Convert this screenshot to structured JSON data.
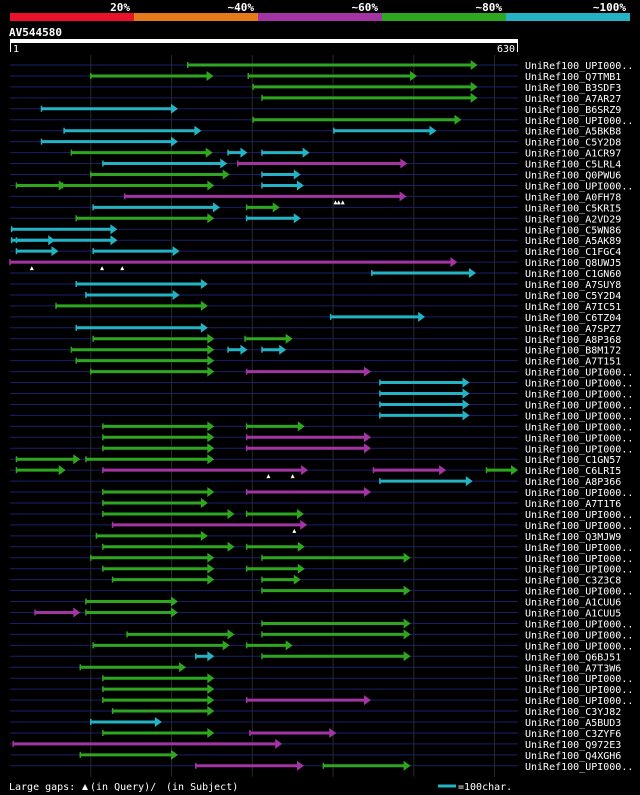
{
  "query_id": "AV544580",
  "query_length": 630,
  "axis": {
    "start_label": "1",
    "end_label": "630"
  },
  "identity_scale": {
    "labels": [
      "20%",
      "~40%",
      "~60%",
      "~80%",
      "~100%"
    ],
    "colors": [
      "#e8132a",
      "#e67a1a",
      "#a334a3",
      "#2ea61f",
      "#24b3c5"
    ]
  },
  "footer": {
    "gaps_label": "Large gaps:",
    "gaps_query": "(in Query)/",
    "gaps_subject": "(in Subject)",
    "scale_label": "=100char."
  },
  "chart_data": {
    "type": "alignment-map",
    "xlim": [
      1,
      630
    ],
    "color_key": {
      "R": "#e8132a",
      "O": "#e67a1a",
      "M": "#a334a3",
      "G": "#2ea61f",
      "C": "#24b3c5"
    },
    "rows": [
      {
        "name": "UniRef100_UPI000..",
        "segs": [
          [
            221,
            580,
            "G"
          ]
        ],
        "gaps": []
      },
      {
        "name": "UniRef100_Q7TMB1",
        "segs": [
          [
            101,
            253,
            "G"
          ],
          [
            296,
            505,
            "G"
          ]
        ],
        "gaps": []
      },
      {
        "name": "UniRef100_B3SDF3",
        "segs": [
          [
            302,
            580,
            "G"
          ]
        ],
        "gaps": []
      },
      {
        "name": "UniRef100_A7AR27",
        "segs": [
          [
            313,
            580,
            "G"
          ]
        ],
        "gaps": []
      },
      {
        "name": "UniRef100_B6SRZ9",
        "segs": [
          [
            40,
            209,
            "C"
          ]
        ],
        "gaps": []
      },
      {
        "name": "UniRef100_UPI000..",
        "segs": [
          [
            302,
            560,
            "G"
          ]
        ],
        "gaps": []
      },
      {
        "name": "UniRef100_A5BKB8",
        "segs": [
          [
            68,
            238,
            "C"
          ],
          [
            402,
            529,
            "C"
          ]
        ],
        "gaps": []
      },
      {
        "name": "UniRef100_C5Y2D8",
        "segs": [
          [
            40,
            209,
            "C"
          ]
        ],
        "gaps": []
      },
      {
        "name": "UniRef100_A1CR97",
        "segs": [
          [
            77,
            252,
            "G"
          ],
          [
            271,
            295,
            "C"
          ],
          [
            313,
            372,
            "C"
          ]
        ],
        "gaps": []
      },
      {
        "name": "UniRef100_C5LRL4",
        "segs": [
          [
            116,
            270,
            "C"
          ],
          [
            283,
            493,
            "M"
          ]
        ],
        "gaps": []
      },
      {
        "name": "UniRef100_Q0PWU6",
        "segs": [
          [
            101,
            273,
            "G"
          ],
          [
            313,
            361,
            "C"
          ]
        ],
        "gaps": []
      },
      {
        "name": "UniRef100_UPI000..",
        "segs": [
          [
            9,
            70,
            "G"
          ],
          [
            66,
            254,
            "G"
          ],
          [
            313,
            365,
            "C"
          ]
        ],
        "gaps": []
      },
      {
        "name": "UniRef100_A0FH78",
        "segs": [
          [
            143,
            492,
            "M"
          ]
        ],
        "gaps": [
          [
            404,
            "Q"
          ],
          [
            408,
            "Q"
          ],
          [
            413,
            "Q"
          ]
        ]
      },
      {
        "name": "UniRef100_C5KRI5",
        "segs": [
          [
            104,
            261,
            "C"
          ],
          [
            294,
            335,
            "G"
          ]
        ],
        "gaps": []
      },
      {
        "name": "UniRef100_A2VD29",
        "segs": [
          [
            83,
            254,
            "G"
          ],
          [
            294,
            361,
            "C"
          ]
        ],
        "gaps": []
      },
      {
        "name": "UniRef100_C5WN86",
        "segs": [
          [
            3,
            134,
            "C"
          ]
        ],
        "gaps": []
      },
      {
        "name": "UniRef100_A5AK89",
        "segs": [
          [
            3,
            134,
            "C"
          ],
          [
            9,
            57,
            "C"
          ]
        ],
        "gaps": []
      },
      {
        "name": "UniRef100_C1FGC4",
        "segs": [
          [
            9,
            61,
            "C"
          ],
          [
            104,
            211,
            "C"
          ]
        ],
        "gaps": []
      },
      {
        "name": "UniRef100_Q8UWJ5",
        "segs": [
          [
            1,
            555,
            "M"
          ]
        ],
        "gaps": [
          [
            28,
            "Q"
          ],
          [
            115,
            "Q"
          ],
          [
            140,
            "Q"
          ]
        ]
      },
      {
        "name": "UniRef100_C1GN60",
        "segs": [
          [
            449,
            578,
            "C"
          ]
        ],
        "gaps": []
      },
      {
        "name": "UniRef100_A7SUY8",
        "segs": [
          [
            83,
            246,
            "C"
          ]
        ],
        "gaps": []
      },
      {
        "name": "UniRef100_C5Y2D4",
        "segs": [
          [
            95,
            211,
            "C"
          ]
        ],
        "gaps": []
      },
      {
        "name": "UniRef100_A7IC51",
        "segs": [
          [
            58,
            246,
            "G"
          ]
        ],
        "gaps": []
      },
      {
        "name": "UniRef100_C6TZ04",
        "segs": [
          [
            398,
            515,
            "C"
          ]
        ],
        "gaps": []
      },
      {
        "name": "UniRef100_A7SPZ7",
        "segs": [
          [
            83,
            246,
            "C"
          ]
        ],
        "gaps": []
      },
      {
        "name": "UniRef100_A8P368",
        "segs": [
          [
            104,
            254,
            "G"
          ],
          [
            292,
            351,
            "G"
          ]
        ],
        "gaps": []
      },
      {
        "name": "UniRef100_B8M172",
        "segs": [
          [
            77,
            254,
            "G"
          ],
          [
            271,
            295,
            "C"
          ],
          [
            313,
            343,
            "C"
          ]
        ],
        "gaps": []
      },
      {
        "name": "UniRef100_A7T151",
        "segs": [
          [
            83,
            254,
            "G"
          ]
        ],
        "gaps": []
      },
      {
        "name": "UniRef100_UPI000..",
        "segs": [
          [
            101,
            254,
            "G"
          ],
          [
            294,
            448,
            "M"
          ]
        ],
        "gaps": []
      },
      {
        "name": "UniRef100_UPI000..",
        "segs": [
          [
            459,
            570,
            "C"
          ]
        ],
        "gaps": []
      },
      {
        "name": "UniRef100_UPI000..",
        "segs": [
          [
            459,
            570,
            "C"
          ]
        ],
        "gaps": []
      },
      {
        "name": "UniRef100_UPI000..",
        "segs": [
          [
            459,
            570,
            "C"
          ]
        ],
        "gaps": []
      },
      {
        "name": "UniRef100_UPI000..",
        "segs": [
          [
            459,
            570,
            "C"
          ]
        ],
        "gaps": []
      },
      {
        "name": "UniRef100_UPI000..",
        "segs": [
          [
            116,
            254,
            "G"
          ],
          [
            294,
            366,
            "G"
          ]
        ],
        "gaps": []
      },
      {
        "name": "UniRef100_UPI000..",
        "segs": [
          [
            116,
            254,
            "G"
          ],
          [
            294,
            448,
            "M"
          ]
        ],
        "gaps": []
      },
      {
        "name": "UniRef100_UPI000..",
        "segs": [
          [
            116,
            254,
            "G"
          ],
          [
            294,
            448,
            "M"
          ]
        ],
        "gaps": []
      },
      {
        "name": "UniRef100_C1GN57",
        "segs": [
          [
            9,
            88,
            "G"
          ],
          [
            95,
            254,
            "G"
          ]
        ],
        "gaps": []
      },
      {
        "name": "UniRef100_C6LRI5",
        "segs": [
          [
            9,
            70,
            "G"
          ],
          [
            116,
            370,
            "M"
          ],
          [
            451,
            541,
            "M"
          ],
          [
            591,
            630,
            "G"
          ]
        ],
        "gaps": [
          [
            321,
            "Q"
          ],
          [
            351,
            "Q"
          ]
        ]
      },
      {
        "name": "UniRef100_A8P366",
        "segs": [
          [
            459,
            574,
            "C"
          ]
        ],
        "gaps": []
      },
      {
        "name": "UniRef100_UPI000..",
        "segs": [
          [
            116,
            254,
            "G"
          ],
          [
            294,
            448,
            "M"
          ]
        ],
        "gaps": []
      },
      {
        "name": "UniRef100_A7T1T6",
        "segs": [
          [
            116,
            246,
            "G"
          ]
        ],
        "gaps": []
      },
      {
        "name": "UniRef100_UPI000..",
        "segs": [
          [
            116,
            279,
            "G"
          ],
          [
            294,
            365,
            "G"
          ]
        ],
        "gaps": []
      },
      {
        "name": "UniRef100_UPI000..",
        "segs": [
          [
            128,
            369,
            "M"
          ]
        ],
        "gaps": [
          [
            353,
            "Q"
          ]
        ]
      },
      {
        "name": "UniRef100_Q3MJW9",
        "segs": [
          [
            108,
            246,
            "G"
          ]
        ],
        "gaps": []
      },
      {
        "name": "UniRef100_UPI000..",
        "segs": [
          [
            116,
            279,
            "G"
          ],
          [
            294,
            366,
            "G"
          ]
        ],
        "gaps": []
      },
      {
        "name": "UniRef100_UPI000..",
        "segs": [
          [
            101,
            254,
            "G"
          ],
          [
            313,
            497,
            "G"
          ]
        ],
        "gaps": []
      },
      {
        "name": "UniRef100_UPI000..",
        "segs": [
          [
            116,
            254,
            "G"
          ],
          [
            294,
            366,
            "G"
          ]
        ],
        "gaps": []
      },
      {
        "name": "UniRef100_C3Z3C8",
        "segs": [
          [
            128,
            254,
            "G"
          ],
          [
            313,
            361,
            "G"
          ]
        ],
        "gaps": []
      },
      {
        "name": "UniRef100_UPI000..",
        "segs": [
          [
            313,
            497,
            "G"
          ]
        ],
        "gaps": []
      },
      {
        "name": "UniRef100_A1CUU6",
        "segs": [
          [
            95,
            209,
            "G"
          ]
        ],
        "gaps": []
      },
      {
        "name": "UniRef100_A1CUU5",
        "segs": [
          [
            32,
            88,
            "M"
          ],
          [
            95,
            209,
            "G"
          ]
        ],
        "gaps": []
      },
      {
        "name": "UniRef100_UPI000..",
        "segs": [
          [
            313,
            497,
            "G"
          ]
        ],
        "gaps": []
      },
      {
        "name": "UniRef100_UPI000..",
        "segs": [
          [
            146,
            279,
            "G"
          ],
          [
            313,
            497,
            "G"
          ]
        ],
        "gaps": []
      },
      {
        "name": "UniRef100_UPI000..",
        "segs": [
          [
            104,
            273,
            "G"
          ],
          [
            294,
            351,
            "G"
          ]
        ],
        "gaps": []
      },
      {
        "name": "UniRef100_Q6BJ51",
        "segs": [
          [
            231,
            254,
            "C"
          ],
          [
            313,
            497,
            "G"
          ]
        ],
        "gaps": []
      },
      {
        "name": "UniRef100_A7T3W6",
        "segs": [
          [
            88,
            219,
            "G"
          ]
        ],
        "gaps": []
      },
      {
        "name": "UniRef100_UPI000..",
        "segs": [
          [
            116,
            254,
            "G"
          ]
        ],
        "gaps": []
      },
      {
        "name": "UniRef100_UPI000..",
        "segs": [
          [
            116,
            254,
            "G"
          ]
        ],
        "gaps": []
      },
      {
        "name": "UniRef100_UPI000..",
        "segs": [
          [
            116,
            254,
            "G"
          ],
          [
            294,
            448,
            "M"
          ]
        ],
        "gaps": []
      },
      {
        "name": "UniRef100_C3YJ82",
        "segs": [
          [
            128,
            254,
            "G"
          ]
        ],
        "gaps": []
      },
      {
        "name": "UniRef100_A5BUD3",
        "segs": [
          [
            101,
            189,
            "C"
          ]
        ],
        "gaps": []
      },
      {
        "name": "UniRef100_C3ZYF6",
        "segs": [
          [
            116,
            254,
            "G"
          ],
          [
            298,
            405,
            "M"
          ]
        ],
        "gaps": []
      },
      {
        "name": "UniRef100_Q972E3",
        "segs": [
          [
            5,
            338,
            "M"
          ]
        ],
        "gaps": []
      },
      {
        "name": "UniRef100_Q4XGH6",
        "segs": [
          [
            88,
            209,
            "G"
          ]
        ],
        "gaps": []
      },
      {
        "name": "UniRef100_UPI000..",
        "segs": [
          [
            231,
            365,
            "M"
          ],
          [
            389,
            497,
            "G"
          ]
        ],
        "gaps": []
      }
    ]
  }
}
